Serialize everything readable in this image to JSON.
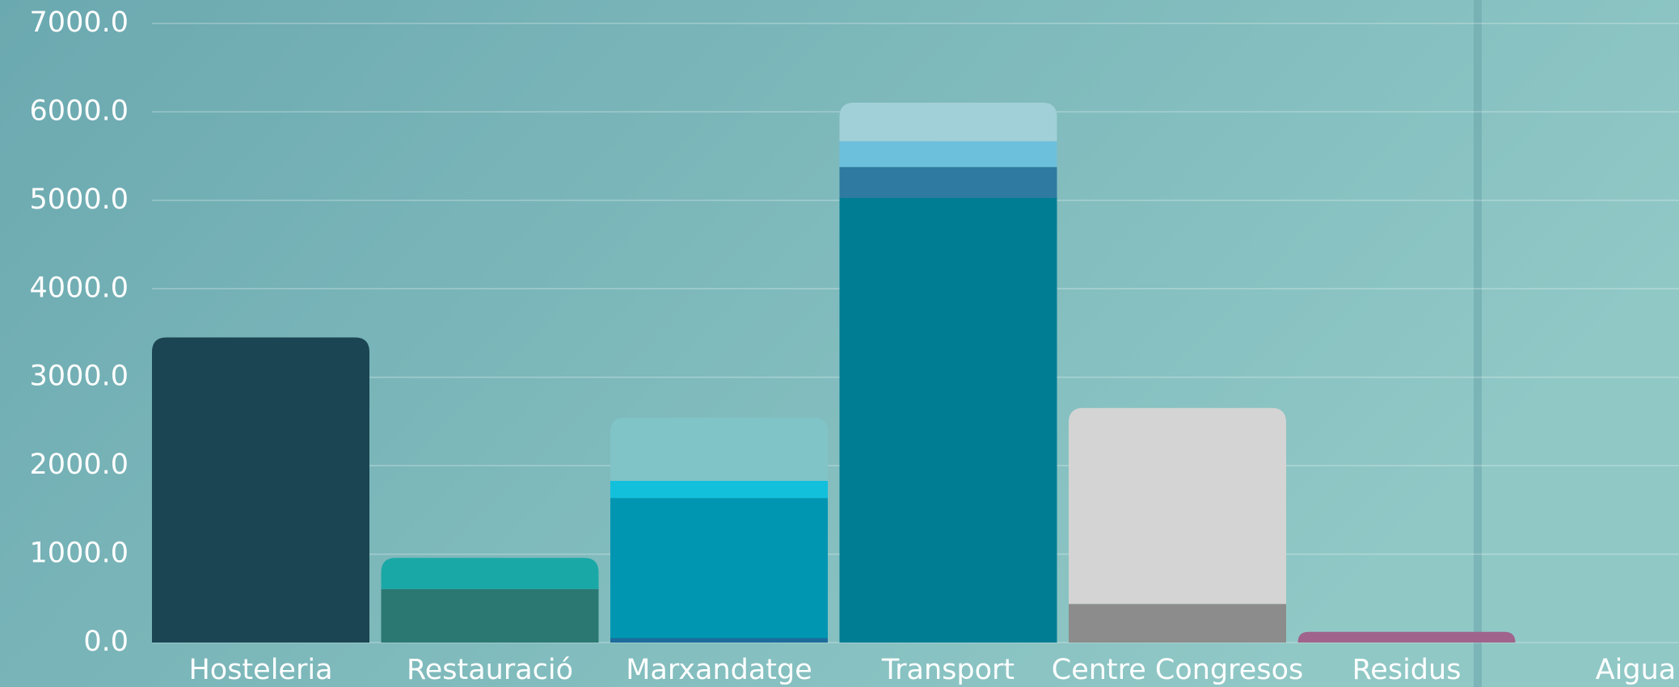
{
  "chart_data": {
    "type": "stacked-bar",
    "categories": [
      "Hosteleria",
      "Restauració",
      "Marxandatge",
      "Transport",
      "Centre Congresos",
      "Residus",
      "Aigua"
    ],
    "series": [
      {
        "values": [
          3450,
          605,
          50,
          5026,
          436,
          121,
          0
        ],
        "colors": [
          "#1b4552",
          "#2b7872",
          "#1d6c9c",
          "#007d93",
          "#8c8c8c",
          "#a0648c",
          "#7fb8bc"
        ]
      },
      {
        "values": [
          null,
          352,
          1585,
          351,
          2216,
          null,
          null
        ],
        "colors": [
          null,
          "#1aa8a6",
          "#0096b2",
          "#2e7aa0",
          "#d4d4d4",
          null,
          null
        ]
      },
      {
        "values": [
          null,
          null,
          194,
          291,
          null,
          null,
          null
        ],
        "colors": [
          null,
          null,
          "#12c0dc",
          "#6dc0dc",
          null,
          null,
          null
        ]
      },
      {
        "values": [
          null,
          null,
          714,
          436,
          null,
          null,
          null
        ],
        "colors": [
          null,
          null,
          "#80c4c8",
          "#a2d0d8",
          null,
          null,
          null
        ]
      }
    ],
    "ylim": [
      0,
      7000
    ],
    "yticks": [
      {
        "value": 0,
        "label": "0.0"
      },
      {
        "value": 1000,
        "label": "1000.0"
      },
      {
        "value": 2000,
        "label": "2000.0"
      },
      {
        "value": 3000,
        "label": "3000.0"
      },
      {
        "value": 4000,
        "label": "4000.0"
      },
      {
        "value": 5000,
        "label": "5000.0"
      },
      {
        "value": 6000,
        "label": "6000.0"
      },
      {
        "value": 7000,
        "label": "7000.0"
      }
    ],
    "grid": true
  }
}
